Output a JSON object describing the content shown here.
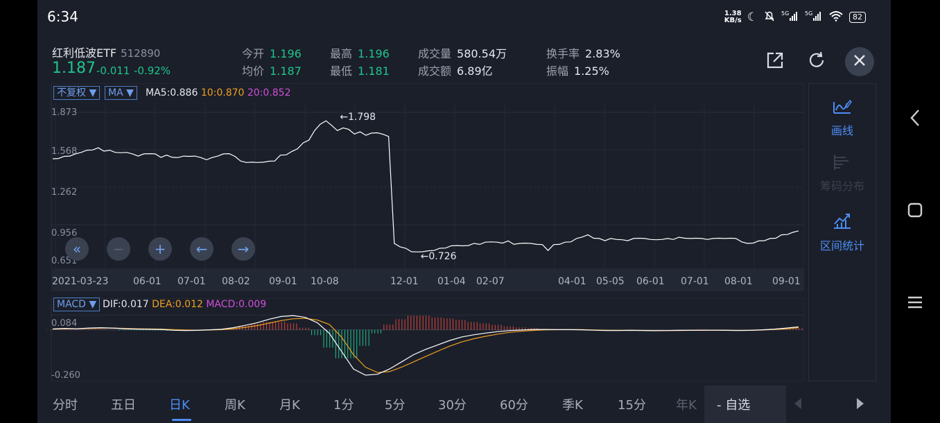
{
  "status_bar": {
    "time": "6:34",
    "net_speed_top": "1.38",
    "net_speed_unit": "KB/s",
    "battery": "82"
  },
  "header": {
    "name": "红利低波ETF",
    "code": "512890",
    "price": "1.187",
    "change": "-0.011",
    "change_pct": "-0.92%",
    "stats": [
      {
        "label": "今开",
        "value": "1.196",
        "color": "green"
      },
      {
        "label": "均价",
        "value": "1.187",
        "color": "green"
      },
      {
        "label": "最高",
        "value": "1.196",
        "color": "green"
      },
      {
        "label": "最低",
        "value": "1.181",
        "color": "green"
      },
      {
        "label": "成交量",
        "value": "580.54万",
        "color": "white"
      },
      {
        "label": "成交额",
        "value": "6.89亿",
        "color": "white"
      },
      {
        "label": "换手率",
        "value": "2.83%",
        "color": "white"
      },
      {
        "label": "振幅",
        "value": "1.25%",
        "color": "white"
      }
    ]
  },
  "chart_controls": {
    "adjust_select": "不复权",
    "indicator_select": "MA",
    "ma5_label": "MA5:0.886",
    "ma10_label": "10:0.870",
    "ma20_label": "20:0.852",
    "macd_select": "MACD",
    "dif_label": "DIF:0.017",
    "dea_label": "DEA:0.012",
    "macd_label": "MACD:0.009"
  },
  "chart_data": [
    {
      "type": "line",
      "y_ticks": [
        "1.873",
        "1.568",
        "1.262",
        "0.956",
        "0.651"
      ],
      "ylim": [
        0.651,
        1.873
      ],
      "x_ticks": [
        "2021-03-23",
        "06-01",
        "07-01",
        "08-02",
        "09-01",
        "10-08",
        "12-01",
        "01-04",
        "02-07",
        "04-01",
        "05-05",
        "06-01",
        "07-01",
        "08-01",
        "09-01"
      ],
      "annotations": {
        "max": "1.798",
        "min": "0.726"
      },
      "series": [
        {
          "values": [
            1.49,
            1.5,
            1.51,
            1.52,
            1.53,
            1.55,
            1.56,
            1.57,
            1.58,
            1.56,
            1.56,
            1.55,
            1.54,
            1.55,
            1.53,
            1.52,
            1.53,
            1.54,
            1.53,
            1.51,
            1.52,
            1.51,
            1.5,
            1.52,
            1.51,
            1.52,
            1.5,
            1.49,
            1.5,
            1.52,
            1.53,
            1.54,
            1.51,
            1.48,
            1.46,
            1.47,
            1.46,
            1.47,
            1.47,
            1.48,
            1.52,
            1.53,
            1.55,
            1.58,
            1.62,
            1.65,
            1.72,
            1.78,
            1.8,
            1.77,
            1.72,
            1.75,
            1.73,
            1.7,
            1.71,
            1.69,
            1.7,
            1.71,
            1.69,
            1.68,
            0.8,
            0.78,
            0.76,
            0.74,
            0.73,
            0.74,
            0.74,
            0.75,
            0.76,
            0.77,
            0.78,
            0.79,
            0.78,
            0.79,
            0.8,
            0.8,
            0.81,
            0.82,
            0.81,
            0.81,
            0.82,
            0.8,
            0.8,
            0.81,
            0.8,
            0.8,
            0.79,
            0.75,
            0.79,
            0.8,
            0.81,
            0.82,
            0.84,
            0.86,
            0.87,
            0.85,
            0.84,
            0.83,
            0.84,
            0.84,
            0.83,
            0.83,
            0.84,
            0.85,
            0.84,
            0.84,
            0.83,
            0.84,
            0.84,
            0.84,
            0.85,
            0.85,
            0.84,
            0.85,
            0.84,
            0.84,
            0.84,
            0.85,
            0.84,
            0.85,
            0.84,
            0.82,
            0.8,
            0.81,
            0.82,
            0.83,
            0.84,
            0.85,
            0.87,
            0.88,
            0.89,
            0.91
          ]
        }
      ]
    },
    {
      "type": "bar",
      "y_ticks": [
        "0.084",
        "-0.260"
      ],
      "ylim": [
        -0.29,
        0.1
      ],
      "series": [
        {
          "name": "DIF",
          "values": [
            0.005,
            0.008,
            0.006,
            0.01,
            0.012,
            0.01,
            0.006,
            0.004,
            0.003,
            0.002,
            -0.002,
            -0.004,
            -0.003,
            0.0,
            0.003,
            0.012,
            0.025,
            0.04,
            0.06,
            0.075,
            0.08,
            0.07,
            0.04,
            -0.02,
            -0.12,
            -0.22,
            -0.255,
            -0.25,
            -0.22,
            -0.18,
            -0.14,
            -0.11,
            -0.085,
            -0.06,
            -0.04,
            -0.028,
            -0.018,
            -0.01,
            -0.004,
            -0.001,
            0.002,
            0.002,
            0.001,
            0.001,
            0.0,
            -0.002,
            -0.004,
            -0.004,
            -0.003,
            -0.004,
            -0.005,
            -0.004,
            -0.003,
            -0.003,
            -0.002,
            -0.002,
            -0.003,
            -0.004,
            -0.003,
            0.0,
            0.004,
            0.01,
            0.017
          ]
        },
        {
          "name": "DEA",
          "values": [
            0.004,
            0.006,
            0.006,
            0.008,
            0.01,
            0.01,
            0.008,
            0.006,
            0.005,
            0.004,
            0.001,
            -0.001,
            -0.002,
            -0.001,
            0.001,
            0.006,
            0.014,
            0.024,
            0.038,
            0.052,
            0.062,
            0.064,
            0.055,
            0.03,
            -0.04,
            -0.14,
            -0.21,
            -0.24,
            -0.235,
            -0.21,
            -0.18,
            -0.15,
            -0.12,
            -0.092,
            -0.068,
            -0.05,
            -0.036,
            -0.024,
            -0.014,
            -0.008,
            -0.003,
            0.0,
            0.001,
            0.001,
            0.001,
            -0.001,
            -0.002,
            -0.003,
            -0.003,
            -0.003,
            -0.004,
            -0.004,
            -0.004,
            -0.003,
            -0.003,
            -0.002,
            -0.003,
            -0.003,
            -0.003,
            -0.001,
            0.002,
            0.006,
            0.012
          ]
        },
        {
          "name": "MACD",
          "values": [
            0.002,
            0.004,
            0.0,
            0.004,
            0.004,
            0.0,
            -0.004,
            -0.004,
            -0.004,
            -0.004,
            -0.006,
            -0.006,
            -0.002,
            0.002,
            0.004,
            0.012,
            0.022,
            0.032,
            0.044,
            0.046,
            0.036,
            0.012,
            -0.03,
            -0.1,
            -0.16,
            -0.16,
            -0.09,
            -0.02,
            0.03,
            0.06,
            0.08,
            0.08,
            0.07,
            0.064,
            0.056,
            0.044,
            0.036,
            0.028,
            0.02,
            0.014,
            0.01,
            0.004,
            0.0,
            0.0,
            -0.002,
            -0.002,
            -0.004,
            -0.002,
            0.0,
            -0.002,
            -0.002,
            0.0,
            0.002,
            0.0,
            0.002,
            0.0,
            0.0,
            -0.002,
            0.0,
            0.002,
            0.004,
            0.008,
            0.009
          ]
        }
      ]
    }
  ],
  "side_panel": {
    "items": [
      {
        "label": "画线",
        "enabled": true
      },
      {
        "label": "筹码分布",
        "enabled": false
      },
      {
        "label": "区间统计",
        "enabled": true
      }
    ]
  },
  "bottom_tabs": {
    "items": [
      "分时",
      "五日",
      "日K",
      "周K",
      "月K",
      "1分",
      "5分",
      "30分",
      "60分",
      "季K",
      "15分",
      "年K"
    ],
    "active": "日K",
    "zixuan": "- 自选"
  },
  "colors": {
    "up": "#e0463a",
    "down": "#1ec58b",
    "accent": "#4d8ef7",
    "ma5": "#ffffff",
    "ma10": "#f0a020",
    "ma20": "#d050d8"
  }
}
